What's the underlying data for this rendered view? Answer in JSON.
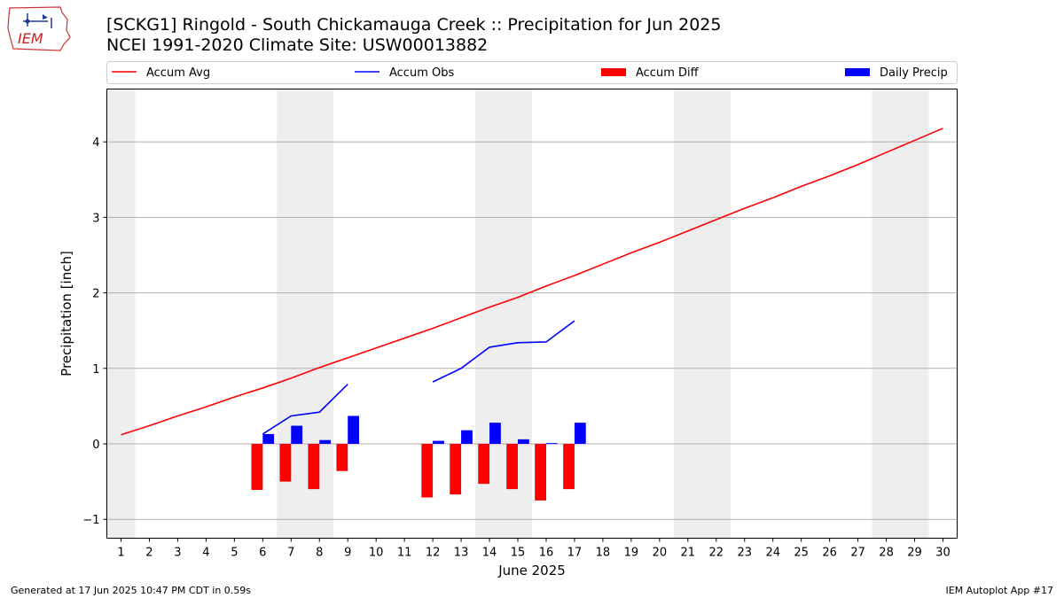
{
  "header": {
    "title_line1": "[SCKG1] Ringold - South Chickamauga Creek :: Precipitation for Jun 2025",
    "title_line2": "NCEI 1991-2020 Climate Site: USW00013882",
    "logo_text": "IEM"
  },
  "footer": {
    "generated": "Generated at 17 Jun 2025 10:47 PM CDT in 0.59s",
    "app": "IEM Autoplot App #17"
  },
  "colors": {
    "accum_avg": "#ff0000",
    "accum_obs": "#0000ff",
    "accum_diff": "#ff0000",
    "daily_precip": "#0000ff",
    "weekend_shading": "#eeeeee",
    "grid": "#b0b0b0"
  },
  "chart_data": {
    "type": "bar",
    "xlabel": "June 2025",
    "ylabel": "Precipitation [inch]",
    "xlim": [
      0.5,
      30.5
    ],
    "ylim": [
      -1.25,
      4.7
    ],
    "yticks": [
      -1,
      0,
      1,
      2,
      3,
      4
    ],
    "grid": "horizontal",
    "legend_position": "top",
    "x": [
      1,
      2,
      3,
      4,
      5,
      6,
      7,
      8,
      9,
      10,
      11,
      12,
      13,
      14,
      15,
      16,
      17,
      18,
      19,
      20,
      21,
      22,
      23,
      24,
      25,
      26,
      27,
      28,
      29,
      30
    ],
    "weekend_days": [
      1,
      7,
      8,
      14,
      15,
      21,
      22,
      28,
      29
    ],
    "series": [
      {
        "name": "Accum Avg",
        "kind": "line",
        "x": [
          1,
          2,
          3,
          4,
          5,
          6,
          7,
          8,
          9,
          10,
          11,
          12,
          13,
          14,
          15,
          16,
          17,
          18,
          19,
          20,
          21,
          22,
          23,
          24,
          25,
          26,
          27,
          28,
          29,
          30
        ],
        "values": [
          0.12,
          0.24,
          0.37,
          0.49,
          0.62,
          0.74,
          0.87,
          1.01,
          1.14,
          1.27,
          1.4,
          1.53,
          1.67,
          1.81,
          1.94,
          2.09,
          2.23,
          2.38,
          2.53,
          2.67,
          2.82,
          2.97,
          3.12,
          3.26,
          3.41,
          3.55,
          3.7,
          3.86,
          4.02,
          4.18
        ]
      },
      {
        "name": "Accum Obs",
        "kind": "line",
        "segments": [
          {
            "x": [
              6,
              7,
              8,
              9
            ],
            "values": [
              0.13,
              0.37,
              0.42,
              0.79
            ]
          },
          {
            "x": [
              12,
              13,
              14,
              15,
              16,
              17
            ],
            "values": [
              0.82,
              1.0,
              1.28,
              1.34,
              1.35,
              1.63
            ]
          }
        ]
      },
      {
        "name": "Accum Diff",
        "kind": "bar",
        "x": [
          6,
          7,
          8,
          9,
          12,
          13,
          14,
          15,
          16,
          17
        ],
        "values": [
          -0.61,
          -0.5,
          -0.6,
          -0.36,
          -0.71,
          -0.67,
          -0.53,
          -0.6,
          -0.75,
          -0.6
        ]
      },
      {
        "name": "Daily Precip",
        "kind": "bar",
        "x": [
          6,
          7,
          8,
          9,
          12,
          13,
          14,
          15,
          16,
          17
        ],
        "values": [
          0.13,
          0.24,
          0.05,
          0.37,
          0.04,
          0.18,
          0.28,
          0.06,
          0.01,
          0.28
        ]
      }
    ]
  }
}
